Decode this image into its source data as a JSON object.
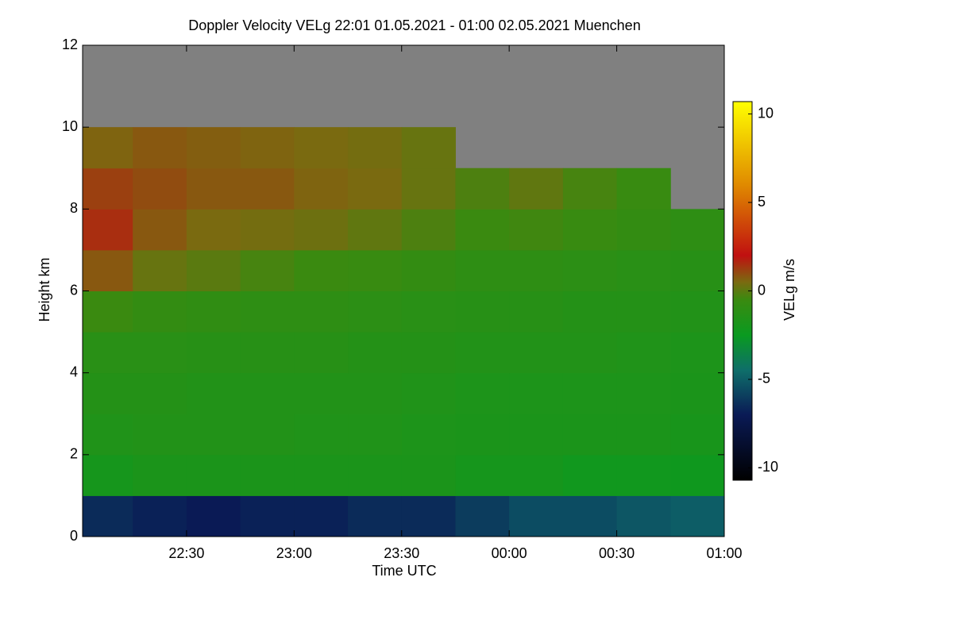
{
  "chart_data": {
    "type": "heatmap",
    "title": "Doppler Velocity VELg   22:01 01.05.2021 - 01:00 02.05.2021 Muenchen",
    "xlabel": "Time UTC",
    "ylabel": "Height km",
    "colorbar_label": "VELg m/s",
    "x": [
      22.125,
      22.375,
      22.625,
      22.875,
      23.125,
      23.375,
      23.625,
      23.875,
      24.125,
      24.375,
      24.625,
      24.875
    ],
    "y": [
      0.5,
      1.5,
      2.5,
      3.5,
      4.5,
      5.5,
      6.5,
      7.5,
      8.5,
      9.5,
      10.5,
      11.5
    ],
    "z": [
      [
        -6.5,
        -6.8,
        -7,
        -6.8,
        -6.8,
        -6.5,
        -6.5,
        -6,
        -5.5,
        -5.5,
        -5.2,
        -5
      ],
      [
        -2,
        -1.8,
        -1.8,
        -1.8,
        -1.8,
        -1.8,
        -1.8,
        -2,
        -2,
        -2.2,
        -2.2,
        -2.3
      ],
      [
        -1.6,
        -1.5,
        -1.5,
        -1.5,
        -1.6,
        -1.6,
        -1.7,
        -1.8,
        -1.8,
        -1.8,
        -1.8,
        -1.9
      ],
      [
        -1.4,
        -1.4,
        -1.5,
        -1.5,
        -1.5,
        -1.5,
        -1.6,
        -1.7,
        -1.7,
        -1.7,
        -1.7,
        -1.8
      ],
      [
        -1.2,
        -1.2,
        -1.3,
        -1.3,
        -1.3,
        -1.4,
        -1.4,
        -1.5,
        -1.5,
        -1.5,
        -1.6,
        -1.7
      ],
      [
        -0.5,
        -0.8,
        -0.9,
        -1,
        -1,
        -1.1,
        -1.2,
        -1.3,
        -1.3,
        -1.4,
        -1.4,
        -1.5
      ],
      [
        0.8,
        0.2,
        0,
        -0.3,
        -0.5,
        -0.6,
        -0.8,
        -1,
        -1,
        -1.1,
        -1.2,
        -1.3
      ],
      [
        1.5,
        0.8,
        0.5,
        0.4,
        0.3,
        0.1,
        -0.2,
        -0.5,
        -0.4,
        -0.6,
        -0.8,
        -1
      ],
      [
        1.2,
        1,
        0.8,
        0.8,
        0.6,
        0.5,
        0.2,
        -0.2,
        0.1,
        -0.3,
        -0.6,
        null
      ],
      [
        0.6,
        0.8,
        0.7,
        0.6,
        0.5,
        0.4,
        0.2,
        null,
        null,
        null,
        null,
        null
      ],
      [
        null,
        null,
        null,
        null,
        null,
        null,
        null,
        null,
        null,
        null,
        null,
        null
      ],
      [
        null,
        null,
        null,
        null,
        null,
        null,
        null,
        null,
        null,
        null,
        null,
        null
      ]
    ],
    "xlim": [
      22.0167,
      25.0
    ],
    "xticks": [
      {
        "value": 22.5,
        "label": "22:30"
      },
      {
        "value": 23,
        "label": "23:00"
      },
      {
        "value": 23.5,
        "label": "23:30"
      },
      {
        "value": 24,
        "label": "00:00"
      },
      {
        "value": 24.5,
        "label": "00:30"
      },
      {
        "value": 25,
        "label": "01:00"
      }
    ],
    "ylim": [
      0,
      12
    ],
    "yticks": [
      0,
      2,
      4,
      6,
      8,
      10,
      12
    ],
    "zlim": [
      -10.7,
      10.7
    ],
    "zticks": [
      -10,
      -5,
      0,
      5,
      10
    ],
    "missing_color": "#808080",
    "colorscale": [
      [
        -10.7,
        "#000000"
      ],
      [
        -7,
        "#0a1a55"
      ],
      [
        -4.5,
        "#0e6e6a"
      ],
      [
        -2.5,
        "#0a9a20"
      ],
      [
        -0.5,
        "#3a8a10"
      ],
      [
        0.5,
        "#7a6a10"
      ],
      [
        2,
        "#c01010"
      ],
      [
        6,
        "#e08a00"
      ],
      [
        10.7,
        "#ffff00"
      ]
    ]
  }
}
